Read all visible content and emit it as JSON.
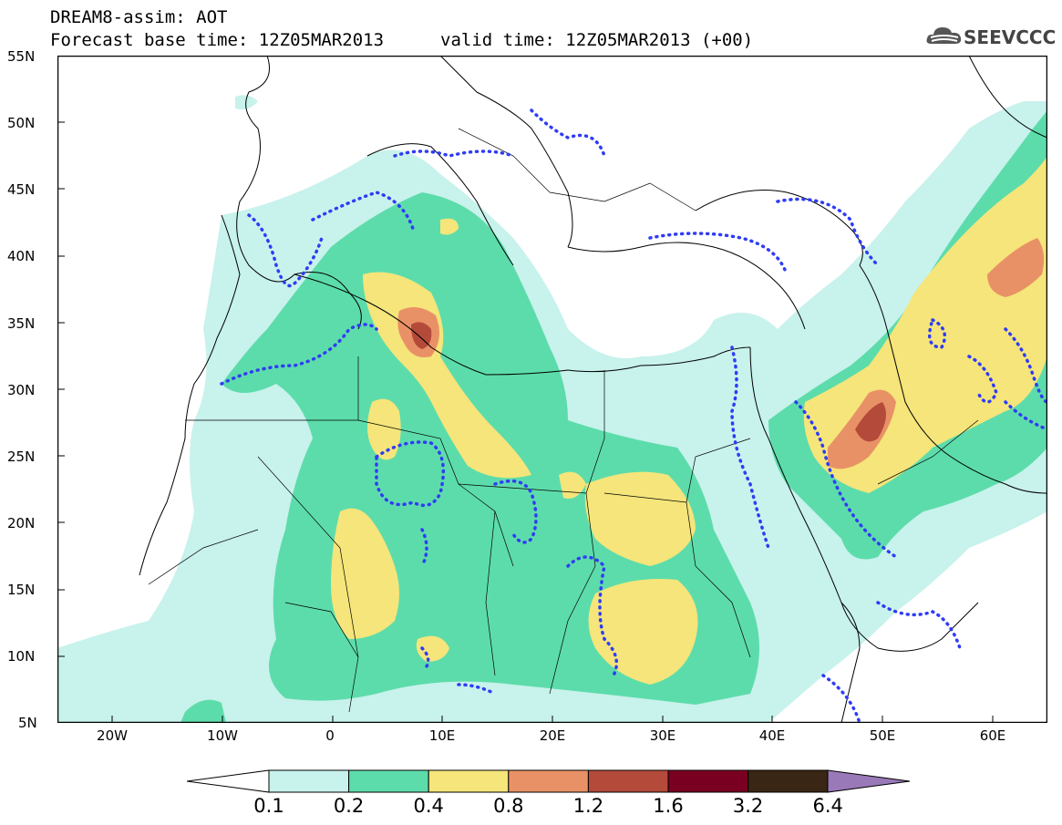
{
  "header": {
    "title": "DREAM8-assim: AOT",
    "forecast_base": "Forecast base time: 12Z05MAR2013",
    "valid_time": "valid time: 12Z05MAR2013 (+00)",
    "logo_text": "SEEVCCC"
  },
  "map": {
    "lat_labels": [
      "55N",
      "50N",
      "45N",
      "40N",
      "35N",
      "30N",
      "25N",
      "20N",
      "15N",
      "10N",
      "5N"
    ],
    "lon_labels": [
      "20W",
      "10W",
      "0",
      "10E",
      "20E",
      "30E",
      "40E",
      "50E",
      "60E"
    ],
    "lon_range": [
      -25,
      65
    ],
    "lat_range": [
      5,
      55
    ],
    "icons": [
      "cloud-logo-icon"
    ]
  },
  "legend": {
    "levels": [
      "0.1",
      "0.2",
      "0.4",
      "0.8",
      "1.2",
      "1.6",
      "3.2",
      "6.4"
    ],
    "colors": [
      "#c8f2ec",
      "#5ddcab",
      "#f5e57a",
      "#e99166",
      "#b34a3a",
      "#7a0022",
      "#3a2614",
      "#9a79b9"
    ],
    "under_color": "#ffffff"
  }
}
